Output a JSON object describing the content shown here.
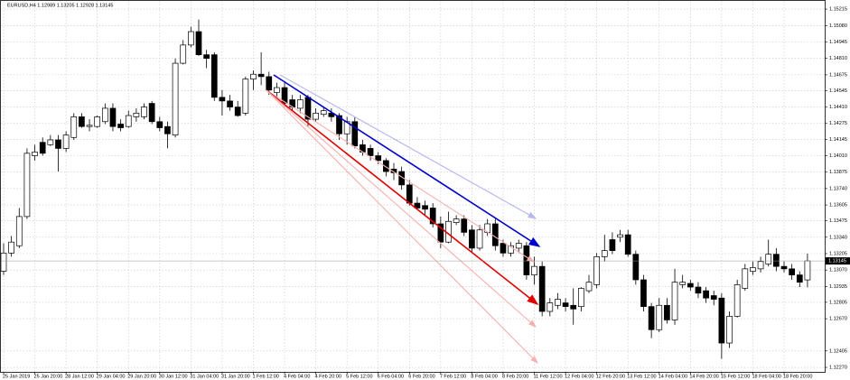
{
  "chart_data": {
    "type": "candlestick",
    "title": "EURUSD,H4 1.12989 1.13205 1.12928 1.13145",
    "categories": [
      "25 Jan 2019",
      null,
      null,
      null,
      "25 Jan 20:00",
      null,
      null,
      null,
      "28 Jan 12:00",
      null,
      null,
      null,
      "29 Jan 04:00",
      null,
      null,
      null,
      "29 Jan 20:00",
      null,
      null,
      null,
      "30 Jan 12:00",
      null,
      null,
      null,
      "31 Jan 04:00",
      null,
      null,
      null,
      "31 Jan 20:00",
      null,
      null,
      null,
      "1 Feb 12:00",
      null,
      null,
      null,
      "4 Feb 04:00",
      null,
      null,
      null,
      "4 Feb 20:00",
      null,
      null,
      null,
      "5 Feb 12:00",
      null,
      null,
      null,
      "6 Feb 04:00",
      null,
      null,
      null,
      "6 Feb 20:00",
      null,
      null,
      null,
      "7 Feb 12:00",
      null,
      null,
      null,
      "8 Feb 04:00",
      null,
      null,
      null,
      "8 Feb 20:00",
      null,
      null,
      null,
      "11 Feb 12:00",
      null,
      null,
      null,
      "12 Feb 04:00",
      null,
      null,
      null,
      "12 Feb 20:00",
      null,
      null,
      null,
      "13 Feb 12:00",
      null,
      null,
      null,
      "14 Feb 04:00",
      null,
      null,
      null,
      "14 Feb 20:00",
      null,
      null,
      null,
      "15 Feb 12:00",
      null,
      null,
      null,
      "18 Feb 04:00",
      null,
      null,
      null,
      "18 Feb 20:00",
      null,
      null,
      null
    ],
    "open": [
      1.1306,
      1.1321,
      1.1327,
      1.1351,
      1.1401,
      1.1412,
      1.141,
      1.1414,
      1.1407,
      1.1416,
      1.1433,
      1.1425,
      1.1425,
      1.1429,
      1.144,
      1.1427,
      1.1425,
      1.1433,
      1.1433,
      1.1444,
      1.1429,
      1.1425,
      1.1418,
      1.1477,
      1.1492,
      1.1503,
      1.1484,
      1.1484,
      1.1449,
      1.1446,
      1.1441,
      1.1436,
      1.1464,
      1.1468,
      1.1466,
      1.1453,
      1.1457,
      1.1447,
      1.144,
      1.1449,
      1.1431,
      1.1435,
      1.1436,
      1.1434,
      1.1419,
      1.1429,
      1.141,
      1.1407,
      1.1401,
      1.1397,
      1.139,
      1.1388,
      1.1377,
      1.1362,
      1.136,
      1.1358,
      1.1345,
      1.133,
      1.1346,
      1.1349,
      1.134,
      1.1325,
      1.1338,
      1.1345,
      1.1329,
      1.1321,
      1.1325,
      1.1327,
      1.1303,
      1.131,
      1.1273,
      1.1278,
      1.128,
      1.1278,
      1.1277,
      1.129,
      1.1295,
      1.1318,
      1.1332,
      1.1334,
      1.1336,
      1.132,
      1.1299,
      1.1277,
      1.1258,
      1.1278,
      1.1266,
      1.1295,
      1.1296,
      1.1293,
      1.129,
      1.1286,
      1.1284,
      1.1247,
      1.1269,
      1.1292,
      1.1306,
      1.1308,
      1.1312,
      1.132,
      1.131,
      1.1308,
      1.1303,
      1.12989
    ],
    "high": [
      1.1329,
      1.1335,
      1.1358,
      1.1407,
      1.141,
      1.1416,
      1.1418,
      1.1418,
      1.1421,
      1.1436,
      1.1436,
      1.1431,
      1.1434,
      1.1444,
      1.1444,
      1.1431,
      1.1438,
      1.144,
      1.1444,
      1.1446,
      1.1433,
      1.1429,
      1.1481,
      1.1496,
      1.1507,
      1.1513,
      1.1488,
      1.1486,
      1.1455,
      1.1451,
      1.1446,
      1.1466,
      1.1471,
      1.1486,
      1.147,
      1.1461,
      1.1461,
      1.1451,
      1.1451,
      1.1451,
      1.144,
      1.1441,
      1.144,
      1.1436,
      1.1433,
      1.1433,
      1.1414,
      1.141,
      1.1404,
      1.1399,
      1.1395,
      1.1392,
      1.1381,
      1.1367,
      1.1364,
      1.1362,
      1.1351,
      1.1355,
      1.1352,
      1.1352,
      1.1344,
      1.1344,
      1.1349,
      1.1349,
      1.1332,
      1.133,
      1.1332,
      1.133,
      1.1318,
      1.1314,
      1.1284,
      1.1288,
      1.1284,
      1.1292,
      1.1293,
      1.1303,
      1.1321,
      1.1336,
      1.1338,
      1.134,
      1.134,
      1.1323,
      1.1303,
      1.128,
      1.1284,
      1.1284,
      1.1308,
      1.1303,
      1.1299,
      1.1297,
      1.1293,
      1.129,
      1.1288,
      1.1273,
      1.1299,
      1.1312,
      1.1314,
      1.1318,
      1.1332,
      1.1325,
      1.1314,
      1.1312,
      1.1306,
      1.13205
    ],
    "low": [
      1.1303,
      1.1318,
      1.1325,
      1.1349,
      1.1397,
      1.1401,
      1.1409,
      1.1388,
      1.1404,
      1.1414,
      1.1424,
      1.1421,
      1.1424,
      1.1427,
      1.1421,
      1.1421,
      1.1424,
      1.1429,
      1.1431,
      1.1427,
      1.1421,
      1.1407,
      1.1416,
      1.1476,
      1.149,
      1.1483,
      1.1473,
      1.1446,
      1.1434,
      1.1438,
      1.1433,
      1.1434,
      1.1455,
      1.1459,
      1.1451,
      1.1449,
      1.1441,
      1.1438,
      1.1436,
      1.1425,
      1.1429,
      1.1433,
      1.1429,
      1.1414,
      1.141,
      1.1407,
      1.1401,
      1.1397,
      1.1394,
      1.1384,
      1.1381,
      1.1373,
      1.136,
      1.1357,
      1.1352,
      1.1342,
      1.1325,
      1.1329,
      1.1344,
      1.1335,
      1.1321,
      1.1323,
      1.1335,
      1.1323,
      1.1318,
      1.1318,
      1.1321,
      1.1299,
      1.1295,
      1.1269,
      1.1269,
      1.1275,
      1.1273,
      1.1262,
      1.1273,
      1.1288,
      1.1292,
      1.1314,
      1.132,
      1.133,
      1.1318,
      1.1295,
      1.1273,
      1.1251,
      1.1256,
      1.1263,
      1.1262,
      1.1292,
      1.129,
      1.1284,
      1.128,
      1.1278,
      1.1234,
      1.1243,
      1.1268,
      1.129,
      1.1303,
      1.1305,
      1.131,
      1.1306,
      1.1305,
      1.1299,
      1.1293,
      1.12928
    ],
    "close": [
      1.1321,
      1.133,
      1.1351,
      1.1403,
      1.1404,
      1.1403,
      1.1414,
      1.1407,
      1.1418,
      1.1433,
      1.1425,
      1.1426,
      1.1433,
      1.144,
      1.1425,
      1.1424,
      1.1434,
      1.1436,
      1.1441,
      1.1429,
      1.1424,
      1.1419,
      1.1477,
      1.1492,
      1.1503,
      1.1484,
      1.1481,
      1.1449,
      1.1446,
      1.1441,
      1.1434,
      1.1464,
      1.1468,
      1.1466,
      1.1455,
      1.1457,
      1.1444,
      1.1441,
      1.1447,
      1.1431,
      1.1436,
      1.1438,
      1.1433,
      1.1419,
      1.1429,
      1.1409,
      1.1404,
      1.1401,
      1.1397,
      1.1388,
      1.1387,
      1.1377,
      1.1362,
      1.1358,
      1.1357,
      1.1345,
      1.133,
      1.1347,
      1.1349,
      1.1338,
      1.1325,
      1.134,
      1.1345,
      1.1327,
      1.1321,
      1.1327,
      1.1329,
      1.1303,
      1.131,
      1.1273,
      1.128,
      1.1283,
      1.1277,
      1.1275,
      1.1292,
      1.1297,
      1.1318,
      1.1323,
      1.1323,
      1.1336,
      1.132,
      1.1299,
      1.1277,
      1.1258,
      1.1278,
      1.1266,
      1.1297,
      1.1297,
      1.1293,
      1.1288,
      1.1284,
      1.1283,
      1.1247,
      1.1269,
      1.1295,
      1.1308,
      1.1309,
      1.1314,
      1.132,
      1.131,
      1.1308,
      1.1303,
      1.1297,
      1.13145
    ],
    "up_color": "#ffffff",
    "down_color": "#000000",
    "ylim": [
      1.12233,
      1.1529
    ],
    "yticks": [
      1.15215,
      {
        "value": 1.1508,
        "label": "1.15080"
      },
      1.14945,
      {
        "value": 1.1481,
        "label": "1.14810"
      },
      1.14675,
      1.14545,
      {
        "value": 1.1441,
        "label": "1.14410"
      },
      1.14275,
      1.14145,
      {
        "value": 1.1401,
        "label": "1.14010"
      },
      1.13875,
      {
        "value": 1.1374,
        "label": "1.13740"
      },
      1.13605,
      1.13475,
      {
        "value": 1.1334,
        "label": "1.13340"
      },
      1.13205,
      {
        "value": 1.1307,
        "label": "1.13070"
      },
      1.12935,
      1.12805,
      {
        "value": 1.1267,
        "label": "1.12670"
      },
      1.12405,
      {
        "value": 1.1227,
        "label": "1.12270"
      }
    ],
    "grid": true
  }
}
